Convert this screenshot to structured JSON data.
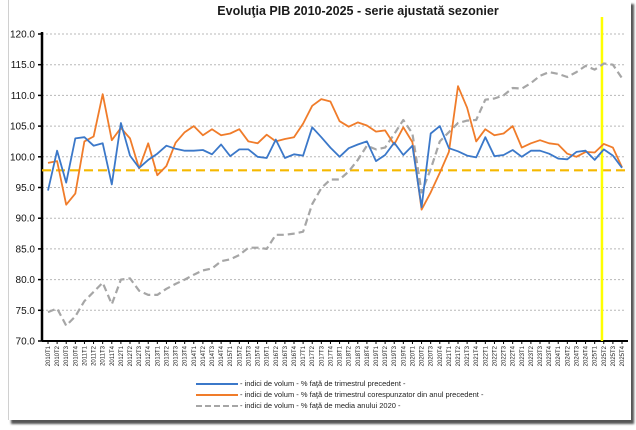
{
  "chart_data": {
    "type": "line",
    "title": "Evoluţia PIB 2010-2025 - serie ajustată sezonier",
    "xlabel": "",
    "ylabel": "",
    "ylim": [
      70,
      120
    ],
    "yticks": [
      "70.0",
      "75.0",
      "80.0",
      "85.0",
      "90.0",
      "95.0",
      "100.0",
      "105.0",
      "110.0",
      "115.0",
      "120.0"
    ],
    "grid": true,
    "legend_position": "bottom",
    "categories": [
      "2010T1",
      "2010T2",
      "2010T3",
      "2010T4",
      "2011T1",
      "2011T2",
      "2011T3",
      "2011T4",
      "2012T1",
      "2012T2",
      "2012T3",
      "2012T4",
      "2013T1",
      "2013T2",
      "2013T3",
      "2013T4",
      "2014T1",
      "2014T2",
      "2014T3",
      "2014T4",
      "2015T1",
      "2015T2",
      "2015T3",
      "2015T4",
      "2016T1",
      "2016T2",
      "2016T3",
      "2016T4",
      "2017T1",
      "2017T2",
      "2017T3",
      "2017T4",
      "2018T1",
      "2018T2",
      "2018T3",
      "2018T4",
      "2019T1",
      "2019T2",
      "2019T3",
      "2019T4",
      "2020T1",
      "2020T2",
      "2020T3",
      "2020T4",
      "2021T1",
      "2021T2",
      "2021T3",
      "2021T4",
      "2022T1",
      "2022T2",
      "2022T3",
      "2022T4",
      "2023T1",
      "2023T2",
      "2023T3",
      "2023T4",
      "2024T1",
      "2024T2",
      "2024T3",
      "2024T4",
      "2025T1",
      "2025T2",
      "2025T3",
      "2025T4"
    ],
    "series": [
      {
        "name": "- indici de volum - % faţă de trimestrul precedent -",
        "color": "#3b78c9",
        "style": "solid",
        "values": [
          94.5,
          101,
          95.8,
          103,
          103.2,
          101.8,
          102.2,
          95.5,
          105.5,
          100.2,
          98.2,
          99.5,
          100.5,
          101.8,
          101.3,
          101,
          101,
          101.1,
          100.4,
          102,
          100.1,
          101.2,
          101.2,
          100,
          99.8,
          102.8,
          99.8,
          100.4,
          100.2,
          104.8,
          103.2,
          101.5,
          100,
          101.4,
          102,
          102.5,
          99.3,
          100.3,
          102.3,
          100.3,
          101.8,
          91.8,
          103.8,
          105,
          101.4,
          100.9,
          100.2,
          99.9,
          103.2,
          100.1,
          100.3,
          101.1,
          100,
          101,
          101,
          100.5,
          99.7,
          99.6,
          100.8,
          101,
          99.5,
          101.2,
          100.2,
          98.2
        ]
      },
      {
        "name": "- indici de volum - % faţă de trimestrul corespunzator din anul precedent -",
        "color": "#f07c2a",
        "style": "solid",
        "values": [
          99,
          99.3,
          92.2,
          94,
          102.5,
          103.3,
          110.2,
          102.7,
          104.7,
          103,
          98.1,
          102.2,
          97,
          98.5,
          102.3,
          104,
          105,
          103.5,
          104.5,
          103.5,
          103.8,
          104.5,
          102.5,
          102.2,
          103.6,
          102.5,
          102.9,
          103.2,
          105.4,
          108.3,
          109.4,
          109,
          105.8,
          104.9,
          105.6,
          105.1,
          104.1,
          104.3,
          102,
          104.8,
          102.4,
          91.4,
          94.2,
          97.4,
          100.8,
          111.5,
          108,
          102.5,
          104.5,
          103.5,
          103.8,
          105,
          101.5,
          102.2,
          102.7,
          102.2,
          102,
          100.5,
          100,
          100.8,
          100.7,
          102.1,
          101.5,
          98.3
        ]
      },
      {
        "name": "- indici de volum - % faţă de media anului 2020 -",
        "color": "#a6a6a6",
        "style": "dashed",
        "values": [
          74.7,
          75.3,
          72.5,
          74,
          76.5,
          78,
          79.5,
          76,
          80,
          80.2,
          78.2,
          77.5,
          77.5,
          78.5,
          79.3,
          80,
          80.8,
          81.5,
          81.8,
          83,
          83.3,
          84,
          85.2,
          85.2,
          85,
          87.3,
          87.3,
          87.5,
          87.8,
          92.3,
          94.9,
          96.3,
          96.3,
          97.6,
          99.5,
          101.8,
          101.2,
          101.5,
          103.7,
          106,
          103.8,
          94.2,
          98,
          102.5,
          104,
          105.5,
          105.9,
          106,
          109.3,
          109.5,
          110,
          111.2,
          111.1,
          112,
          113.2,
          113.8,
          113.5,
          113,
          113.8,
          114.8,
          114.2,
          115.2,
          115,
          112.8
        ]
      }
    ],
    "reference_lines": [
      {
        "type": "horizontal",
        "value": 97.8,
        "color": "#f5b800",
        "style": "dashed"
      },
      {
        "type": "vertical",
        "at_category_index": 60.8,
        "color": "#ffff00",
        "style": "solid"
      }
    ]
  }
}
